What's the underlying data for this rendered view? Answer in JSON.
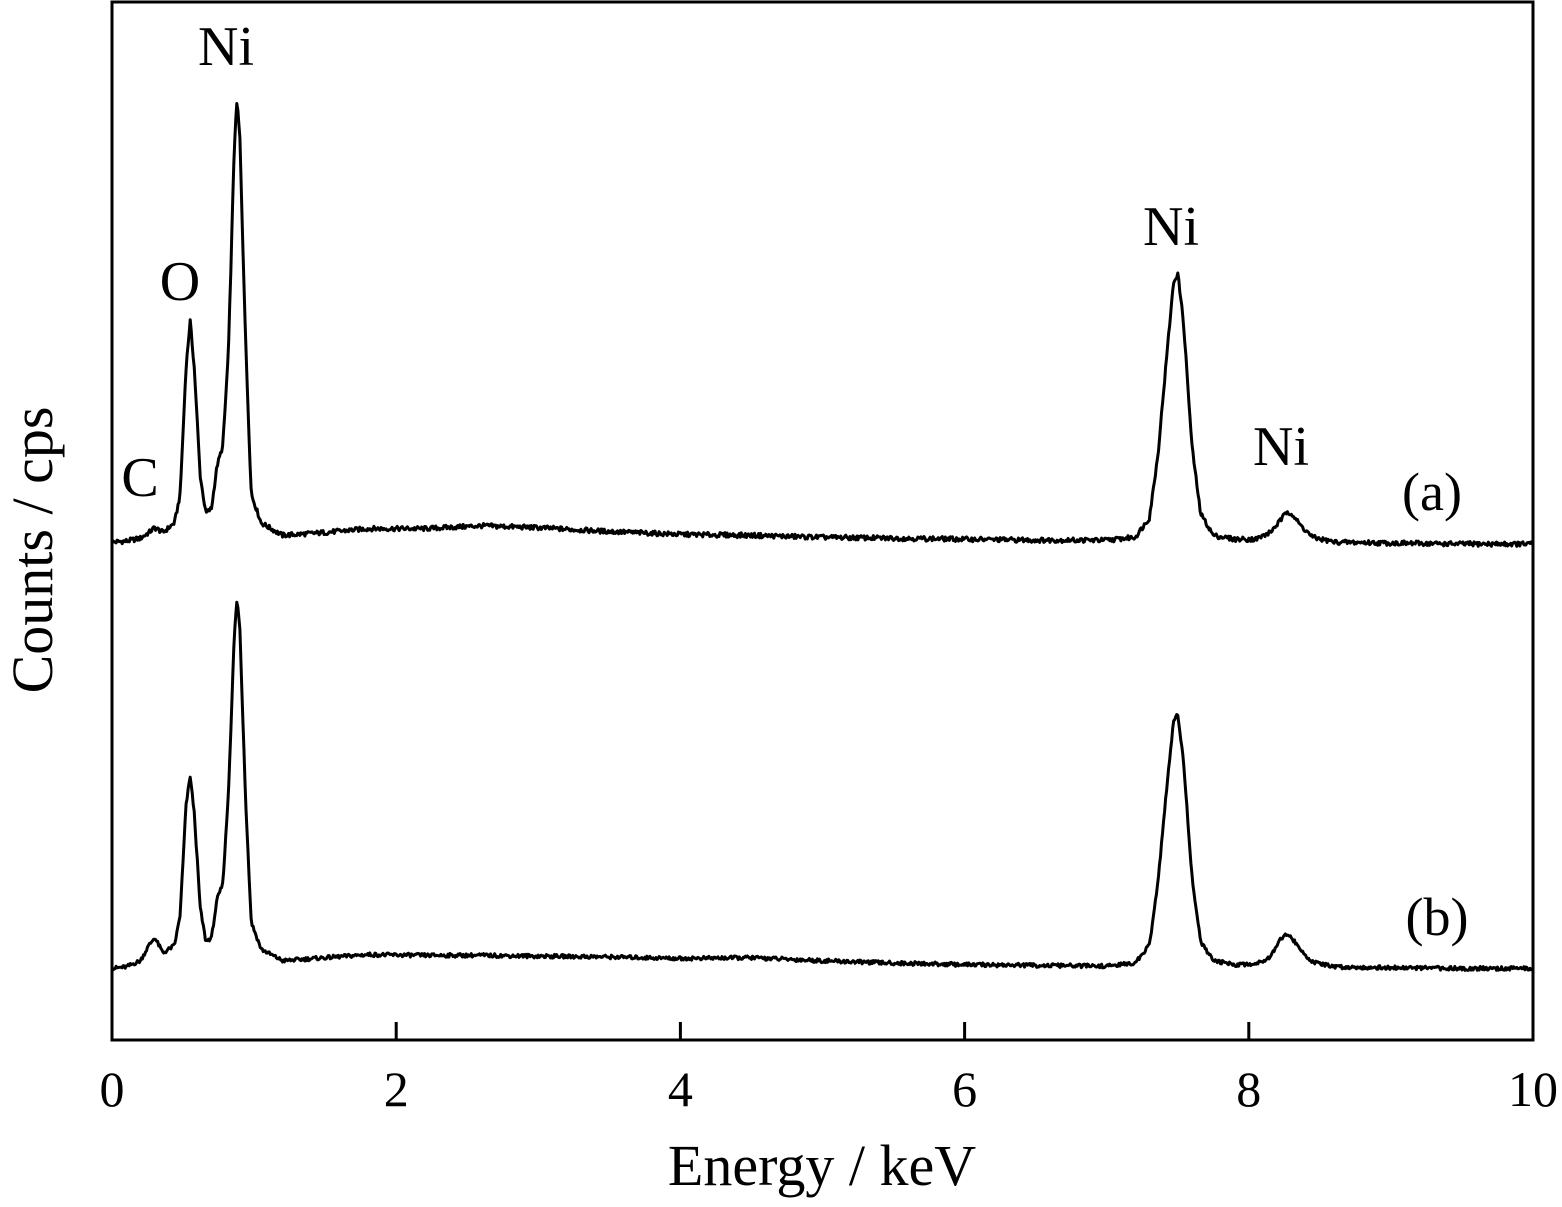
{
  "chart_data": {
    "type": "line",
    "title": "",
    "xlabel": "Energy / keV",
    "ylabel": "Counts / cps",
    "xlim": [
      0,
      10
    ],
    "xticks": [
      "0",
      "2",
      "4",
      "6",
      "8",
      "10"
    ],
    "y_tick_labels": false,
    "grid": false,
    "series": [
      {
        "name": "(a)",
        "baseline": 0.1,
        "points": [
          [
            0.0,
            0.1
          ],
          [
            0.1,
            0.11
          ],
          [
            0.2,
            0.14
          ],
          [
            0.26,
            0.2
          ],
          [
            0.3,
            0.25
          ],
          [
            0.36,
            0.2
          ],
          [
            0.44,
            0.3
          ],
          [
            0.48,
            0.6
          ],
          [
            0.52,
            1.9
          ],
          [
            0.55,
            2.4
          ],
          [
            0.58,
            1.9
          ],
          [
            0.62,
            0.8
          ],
          [
            0.66,
            0.4
          ],
          [
            0.7,
            0.45
          ],
          [
            0.74,
            0.9
          ],
          [
            0.78,
            1.1
          ],
          [
            0.82,
            2.1
          ],
          [
            0.86,
            4.2
          ],
          [
            0.88,
            4.7
          ],
          [
            0.9,
            4.3
          ],
          [
            0.94,
            2.2
          ],
          [
            0.98,
            0.6
          ],
          [
            1.05,
            0.3
          ],
          [
            1.2,
            0.17
          ],
          [
            1.5,
            0.2
          ],
          [
            1.8,
            0.24
          ],
          [
            2.2,
            0.24
          ],
          [
            2.6,
            0.27
          ],
          [
            3.0,
            0.25
          ],
          [
            3.5,
            0.21
          ],
          [
            4.0,
            0.18
          ],
          [
            4.5,
            0.17
          ],
          [
            5.0,
            0.15
          ],
          [
            5.5,
            0.14
          ],
          [
            6.0,
            0.13
          ],
          [
            6.5,
            0.12
          ],
          [
            7.0,
            0.12
          ],
          [
            7.2,
            0.15
          ],
          [
            7.3,
            0.35
          ],
          [
            7.36,
            1.0
          ],
          [
            7.42,
            2.0
          ],
          [
            7.47,
            2.8
          ],
          [
            7.5,
            2.9
          ],
          [
            7.54,
            2.4
          ],
          [
            7.6,
            1.1
          ],
          [
            7.66,
            0.4
          ],
          [
            7.75,
            0.17
          ],
          [
            7.9,
            0.13
          ],
          [
            8.05,
            0.13
          ],
          [
            8.15,
            0.2
          ],
          [
            8.22,
            0.32
          ],
          [
            8.27,
            0.42
          ],
          [
            8.3,
            0.4
          ],
          [
            8.36,
            0.28
          ],
          [
            8.45,
            0.15
          ],
          [
            8.6,
            0.1
          ],
          [
            9.0,
            0.09
          ],
          [
            9.5,
            0.08
          ],
          [
            10.0,
            0.08
          ]
        ]
      },
      {
        "name": "(b)",
        "baseline": 0.1,
        "points": [
          [
            0.0,
            0.1
          ],
          [
            0.1,
            0.12
          ],
          [
            0.2,
            0.2
          ],
          [
            0.26,
            0.4
          ],
          [
            0.3,
            0.5
          ],
          [
            0.36,
            0.3
          ],
          [
            0.44,
            0.4
          ],
          [
            0.48,
            0.8
          ],
          [
            0.52,
            2.2
          ],
          [
            0.55,
            2.6
          ],
          [
            0.58,
            2.1
          ],
          [
            0.62,
            0.9
          ],
          [
            0.66,
            0.45
          ],
          [
            0.7,
            0.5
          ],
          [
            0.74,
            1.0
          ],
          [
            0.78,
            1.2
          ],
          [
            0.82,
            2.4
          ],
          [
            0.86,
            4.4
          ],
          [
            0.88,
            4.9
          ],
          [
            0.9,
            4.5
          ],
          [
            0.94,
            2.3
          ],
          [
            0.98,
            0.7
          ],
          [
            1.05,
            0.35
          ],
          [
            1.2,
            0.2
          ],
          [
            1.5,
            0.24
          ],
          [
            1.8,
            0.28
          ],
          [
            2.2,
            0.27
          ],
          [
            2.6,
            0.27
          ],
          [
            3.0,
            0.26
          ],
          [
            3.5,
            0.25
          ],
          [
            4.0,
            0.23
          ],
          [
            4.5,
            0.24
          ],
          [
            5.0,
            0.2
          ],
          [
            5.5,
            0.17
          ],
          [
            6.0,
            0.15
          ],
          [
            6.5,
            0.14
          ],
          [
            7.0,
            0.13
          ],
          [
            7.2,
            0.17
          ],
          [
            7.3,
            0.4
          ],
          [
            7.36,
            1.2
          ],
          [
            7.42,
            2.4
          ],
          [
            7.47,
            3.3
          ],
          [
            7.5,
            3.4
          ],
          [
            7.54,
            2.8
          ],
          [
            7.6,
            1.3
          ],
          [
            7.66,
            0.45
          ],
          [
            7.75,
            0.2
          ],
          [
            7.9,
            0.15
          ],
          [
            8.05,
            0.16
          ],
          [
            8.15,
            0.25
          ],
          [
            8.22,
            0.48
          ],
          [
            8.27,
            0.55
          ],
          [
            8.3,
            0.5
          ],
          [
            8.36,
            0.35
          ],
          [
            8.45,
            0.18
          ],
          [
            8.6,
            0.12
          ],
          [
            9.0,
            0.11
          ],
          [
            9.5,
            0.1
          ],
          [
            10.0,
            0.1
          ]
        ]
      }
    ],
    "annotations": [
      {
        "text": "C",
        "series": "(a)",
        "x": 0.2
      },
      {
        "text": "O",
        "series": "(a)",
        "x": 0.55
      },
      {
        "text": "Ni",
        "series": "(a)",
        "x": 0.88
      },
      {
        "text": "Ni",
        "series": "(a)",
        "x": 7.5
      },
      {
        "text": "Ni",
        "series": "(a)",
        "x": 8.27
      }
    ]
  }
}
